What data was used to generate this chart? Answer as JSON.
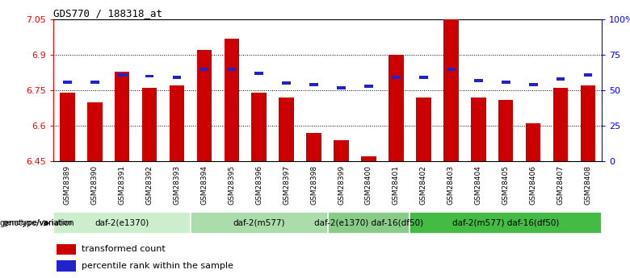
{
  "title": "GDS770 / 188318_at",
  "samples": [
    "GSM28389",
    "GSM28390",
    "GSM28391",
    "GSM28392",
    "GSM28393",
    "GSM28394",
    "GSM28395",
    "GSM28396",
    "GSM28397",
    "GSM28398",
    "GSM28399",
    "GSM28400",
    "GSM28401",
    "GSM28402",
    "GSM28403",
    "GSM28404",
    "GSM28405",
    "GSM28406",
    "GSM28407",
    "GSM28408"
  ],
  "bar_values": [
    6.74,
    6.7,
    6.83,
    6.76,
    6.77,
    6.92,
    6.97,
    6.74,
    6.72,
    6.57,
    6.54,
    6.47,
    6.9,
    6.72,
    7.05,
    6.72,
    6.71,
    6.61,
    6.76,
    6.77
  ],
  "percentile_values": [
    56,
    56,
    61,
    60,
    59,
    65,
    65,
    62,
    55,
    54,
    52,
    53,
    59,
    59,
    65,
    57,
    56,
    54,
    58,
    61
  ],
  "ylim_left": [
    6.45,
    7.05
  ],
  "ylim_right": [
    0,
    100
  ],
  "bar_color": "#cc0000",
  "percentile_color": "#2222cc",
  "left_ticks": [
    6.45,
    6.6,
    6.75,
    6.9,
    7.05
  ],
  "grid_values": [
    6.6,
    6.75,
    6.9
  ],
  "right_ticks": [
    0,
    25,
    50,
    75,
    100
  ],
  "right_tick_labels": [
    "0",
    "25",
    "50",
    "75",
    "100%"
  ],
  "groups": [
    {
      "label": "daf-2(e1370)",
      "start": 0,
      "end": 4
    },
    {
      "label": "daf-2(m577)",
      "start": 5,
      "end": 9
    },
    {
      "label": "daf-2(e1370) daf-16(df50)",
      "start": 10,
      "end": 12
    },
    {
      "label": "daf-2(m577) daf-16(df50)",
      "start": 13,
      "end": 19
    }
  ],
  "group_colors": [
    "#cceecc",
    "#aaddaa",
    "#88cc88",
    "#44bb44"
  ],
  "legend_items": [
    {
      "label": "transformed count",
      "color": "#cc0000"
    },
    {
      "label": "percentile rank within the sample",
      "color": "#2222cc"
    }
  ],
  "group_label": "genotype/variation",
  "label_bg_color": "#c8c8c8"
}
